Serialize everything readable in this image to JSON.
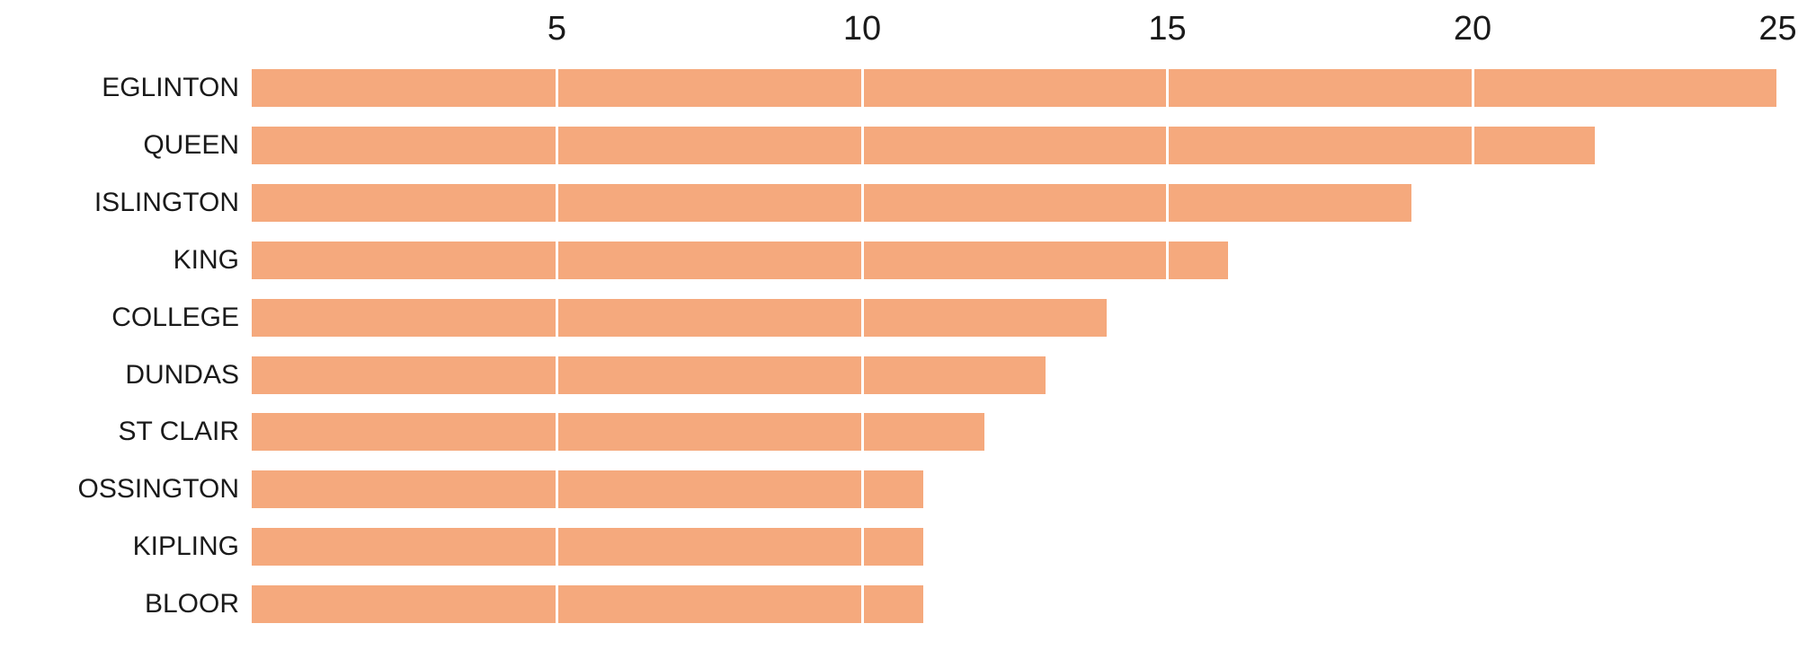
{
  "chart_data": {
    "type": "bar",
    "orientation": "horizontal",
    "categories": [
      "EGLINTON",
      "QUEEN",
      "ISLINGTON",
      "KING",
      "COLLEGE",
      "DUNDAS",
      "ST CLAIR",
      "OSSINGTON",
      "KIPLING",
      "BLOOR"
    ],
    "values": [
      25,
      22,
      19,
      16,
      14,
      13,
      12,
      11,
      11,
      11
    ],
    "x_axis": {
      "position": "top",
      "min": 0,
      "max": 25,
      "ticks": [
        5,
        10,
        15,
        20,
        25
      ]
    },
    "grid": true,
    "gridlines_over_bars": true,
    "legend": false,
    "colors": {
      "bar": "#F5A97D",
      "gridline": "#FFFFFF",
      "text": "#1A1A1A",
      "background": "#FFFFFF"
    }
  }
}
